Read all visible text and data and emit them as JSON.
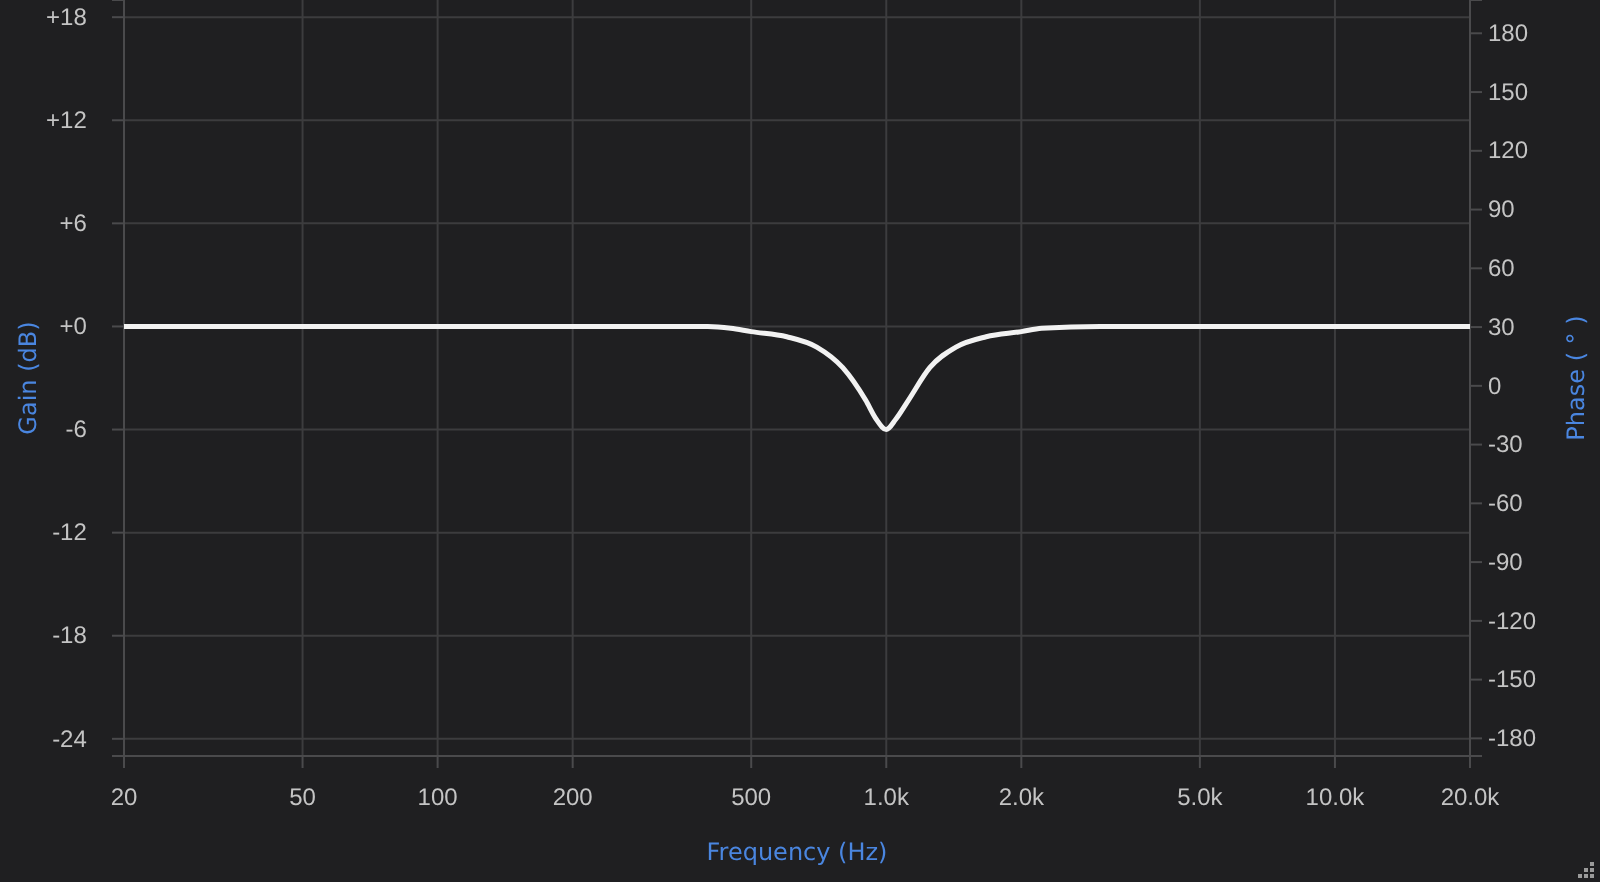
{
  "chart_data": {
    "type": "line",
    "xlabel": "Frequency (Hz)",
    "ylabel": "Gain (dB)",
    "y2label": "Phase ( ° )",
    "log": "x",
    "x": [
      20,
      100,
      200,
      300,
      400,
      450,
      500,
      600,
      700,
      800,
      900,
      950,
      1000,
      1050,
      1120,
      1250,
      1430,
      1670,
      2000,
      2220,
      3000,
      5000,
      10000,
      20000
    ],
    "series": [
      {
        "color": "#f2f2f2",
        "values": [
          0,
          0,
          0,
          0,
          0,
          -0.1,
          -0.3,
          -0.6,
          -1.2,
          -2.4,
          -4.3,
          -5.4,
          -6,
          -5.4,
          -4.3,
          -2.4,
          -1.2,
          -0.6,
          -0.3,
          -0.1,
          0,
          0,
          0,
          0
        ]
      }
    ],
    "xlim": [
      20,
      20000
    ],
    "xticks": [
      20,
      50,
      100,
      200,
      500,
      {
        "value": 1000,
        "label": "1.0k"
      },
      {
        "value": 2000,
        "label": "2.0k"
      },
      {
        "value": 5000,
        "label": "5.0k"
      },
      {
        "value": 10000,
        "label": "10.0k"
      },
      {
        "value": 20000,
        "label": "20.0k"
      }
    ],
    "ylim": [
      -25,
      19
    ],
    "yticks": [
      {
        "value": 18,
        "label": "+18"
      },
      {
        "value": 12,
        "label": "+12"
      },
      {
        "value": 6,
        "label": "+6"
      },
      {
        "value": 0,
        "label": "+0"
      },
      -6,
      -12,
      -18,
      -24
    ],
    "y2lim": [
      -189,
      197
    ],
    "y2ticks": [
      180,
      150,
      120,
      90,
      60,
      30,
      0,
      -30,
      -60,
      -90,
      -120,
      -150,
      -180
    ],
    "grid": true,
    "marker": "none",
    "line_style": "solid"
  }
}
